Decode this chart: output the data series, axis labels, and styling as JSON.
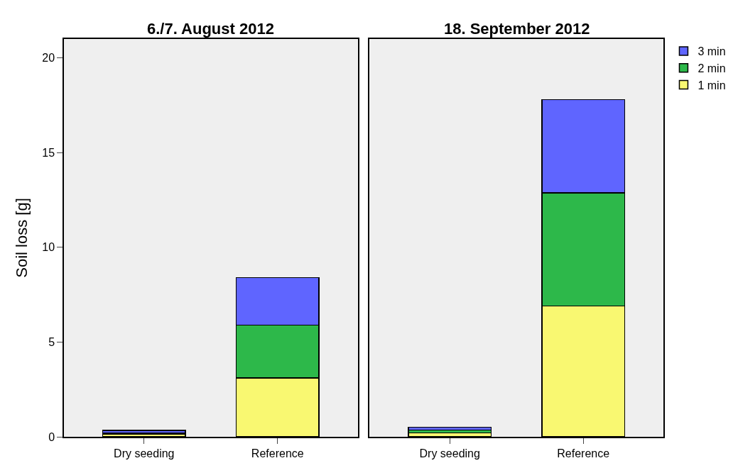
{
  "chart_data": [
    {
      "type": "bar",
      "stacked": true,
      "title": "6./7. August 2012",
      "ylabel": "Soil loss [g]",
      "categories": [
        "Dry seeding",
        "Reference"
      ],
      "ylim": [
        0,
        21
      ],
      "yticks": [
        0,
        5,
        10,
        15,
        20
      ],
      "grid": false,
      "legend": "top right",
      "series": [
        {
          "name": "1 min",
          "color": "#f9f871",
          "values": [
            0.15,
            3.1
          ]
        },
        {
          "name": "2 min",
          "color": "#2db84a",
          "values": [
            0.05,
            2.8
          ]
        },
        {
          "name": "3 min",
          "color": "#5f65ff",
          "values": [
            0.13,
            2.5
          ]
        }
      ]
    },
    {
      "type": "bar",
      "stacked": true,
      "title": "18. September 2012",
      "categories": [
        "Dry seeding",
        "Reference"
      ],
      "ylim": [
        0,
        21
      ],
      "tick_labels": "x",
      "grid": false,
      "series": [
        {
          "color": "#f9f871",
          "values": [
            0.2,
            6.9
          ]
        },
        {
          "color": "#2db84a",
          "values": [
            0.15,
            5.97
          ]
        },
        {
          "color": "#5f65ff",
          "values": [
            0.15,
            4.93
          ]
        }
      ]
    }
  ]
}
